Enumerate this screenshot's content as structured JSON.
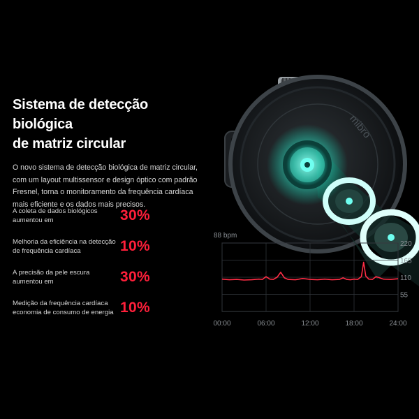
{
  "headline": {
    "line1": "Sistema de detecção biológica",
    "line2": "de matriz circular"
  },
  "intro": "O novo sistema de detecção biológica de matriz circular, com um layout multissensor e design óptico com padrão Fresnel, torna o monitoramento da frequência cardíaca mais eficiente e os dados mais precisos.",
  "stats": [
    {
      "label": "A coleta de dados biológicos aumentou em",
      "value": "30%"
    },
    {
      "label": "Melhoria da eficiência na detecção de frequência cardíaca",
      "value": "10%"
    },
    {
      "label": "A precisão da pele escura aumentou em",
      "value": "30%"
    },
    {
      "label": "Medição da frequência cardíaca economia de consumo de energia",
      "value": "10%"
    }
  ],
  "watch": {
    "brand": "mibro"
  },
  "colors": {
    "accent": "#ff1f3a",
    "glow": "#3fffe0",
    "line": "#ff2d45"
  },
  "chart_data": {
    "type": "line",
    "unit_label": "88 bpm",
    "x_ticks": [
      "00:00",
      "06:00",
      "12:00",
      "18:00",
      "24:00"
    ],
    "y_ticks": [
      "220",
      "165",
      "110",
      "55"
    ],
    "ylim": [
      0,
      220
    ],
    "xlim": [
      0,
      24
    ],
    "series": [
      {
        "x": [
          0,
          1,
          2,
          3,
          4,
          5,
          5.5,
          6,
          6.5,
          7,
          7.5,
          8,
          8.5,
          9,
          10,
          11,
          12,
          13,
          14,
          15,
          16,
          16.5,
          17,
          17.5,
          18,
          18.5,
          19,
          19.3,
          19.6,
          20,
          20.5,
          21,
          22,
          23,
          24
        ],
        "y": [
          104,
          102,
          103,
          101,
          102,
          104,
          103,
          112,
          104,
          103,
          110,
          126,
          108,
          103,
          102,
          106,
          103,
          102,
          104,
          102,
          103,
          108,
          103,
          102,
          104,
          103,
          112,
          158,
          114,
          104,
          103,
          112,
          104,
          103,
          105
        ]
      }
    ]
  }
}
